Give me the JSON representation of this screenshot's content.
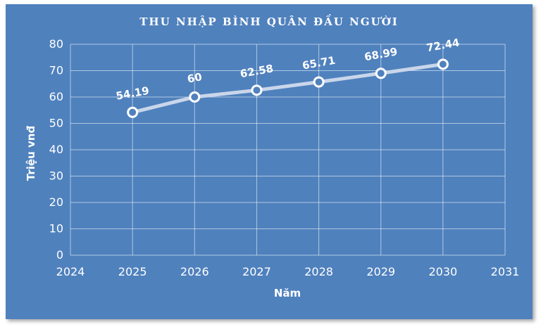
{
  "chart_data": {
    "type": "scatter",
    "title": "THU NHẬP BÌNH QUÂN ĐẦU NGƯỜI",
    "xlabel": "Năm",
    "ylabel": "Triệu vnđ",
    "x": [
      2025,
      2026,
      2027,
      2028,
      2029,
      2030
    ],
    "series": [
      {
        "values": [
          54.19,
          60,
          62.58,
          65.71,
          68.99,
          72.44
        ]
      }
    ],
    "data_labels": [
      "54.19",
      "60",
      "62.58",
      "65.71",
      "68.99",
      "72.44"
    ],
    "xlim": [
      2024,
      2031
    ],
    "ylim": [
      0,
      80
    ],
    "xticks": [
      2024,
      2025,
      2026,
      2027,
      2028,
      2029,
      2030,
      2031
    ],
    "yticks": [
      0,
      10,
      20,
      30,
      40,
      50,
      60,
      70,
      80
    ],
    "grid": true,
    "legend": "none",
    "colors": {
      "background": "#4f81bd",
      "line": "#c9d6ea",
      "marker_fill": "#4f81bd",
      "marker_stroke": "#ffffff",
      "grid": "#ffffff",
      "text": "#ffffff"
    }
  }
}
